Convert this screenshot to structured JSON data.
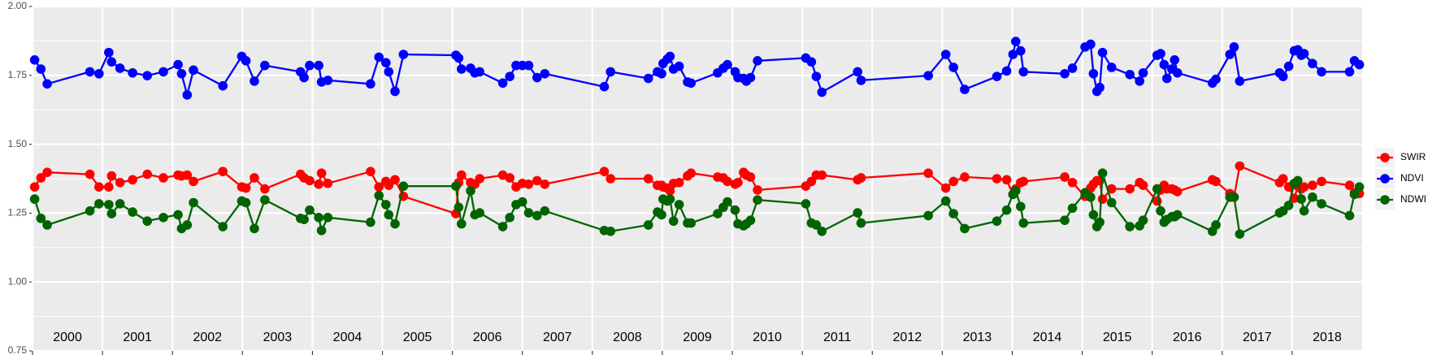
{
  "chart_data": {
    "type": "line",
    "xlim": [
      2000,
      2019
    ],
    "xticks": [
      2000,
      2001,
      2002,
      2003,
      2004,
      2005,
      2006,
      2007,
      2008,
      2009,
      2010,
      2011,
      2012,
      2013,
      2014,
      2015,
      2016,
      2017,
      2018
    ],
    "year_labels": [
      "2000",
      "2001",
      "2002",
      "2003",
      "2004",
      "2005",
      "2006",
      "2007",
      "2008",
      "2009",
      "2010",
      "2011",
      "2012",
      "2013",
      "2014",
      "2015",
      "2016",
      "2017",
      "2018"
    ],
    "ylim": [
      0.75,
      2.0
    ],
    "yticks": [
      0.75,
      {
        "value": 1.0,
        "label": "1.00"
      },
      1.25,
      {
        "value": 1.5,
        "label": "1.50"
      },
      1.75,
      {
        "value": 2.0,
        "label": "2.00"
      }
    ],
    "grid": true,
    "legend": "right",
    "x": [
      2000.03,
      2000.12,
      2000.21,
      2000.82,
      2000.95,
      2001.09,
      2001.13,
      2001.25,
      2001.43,
      2001.64,
      2001.87,
      2002.08,
      2002.13,
      2002.21,
      2002.3,
      2002.72,
      2002.99,
      2003.05,
      2003.17,
      2003.32,
      2003.83,
      2003.88,
      2003.96,
      2004.09,
      2004.13,
      2004.22,
      2004.83,
      2004.95,
      2005.05,
      2005.09,
      2005.18,
      2005.3,
      2006.05,
      2006.09,
      2006.13,
      2006.26,
      2006.32,
      2006.39,
      2006.72,
      2006.82,
      2006.91,
      2007.0,
      2007.09,
      2007.21,
      2007.32,
      2008.17,
      2008.26,
      2008.8,
      2008.93,
      2008.99,
      2009.01,
      2009.07,
      2009.11,
      2009.16,
      2009.24,
      2009.36,
      2009.41,
      2009.79,
      2009.87,
      2009.93,
      2010.04,
      2010.08,
      2010.16,
      2010.2,
      2010.26,
      2010.36,
      2011.05,
      2011.13,
      2011.2,
      2011.28,
      2011.79,
      2011.84,
      2012.8,
      2013.05,
      2013.16,
      2013.32,
      2013.78,
      2013.92,
      2014.01,
      2014.05,
      2014.12,
      2014.16,
      2014.75,
      2014.86,
      2015.04,
      2015.12,
      2015.16,
      2015.21,
      2015.25,
      2015.29,
      2015.42,
      2015.68,
      2015.82,
      2015.87,
      2016.07,
      2016.12,
      2016.17,
      2016.21,
      2016.28,
      2016.32,
      2016.36,
      2016.86,
      2016.91,
      2017.11,
      2017.17,
      2017.25,
      2017.82,
      2017.87,
      2017.95,
      2018.03,
      2018.08,
      2018.13,
      2018.17,
      2018.29,
      2018.42,
      2018.82,
      2018.89,
      2018.96
    ],
    "series": [
      {
        "name": "SWIR",
        "color": "#ff0000",
        "values": [
          1.345,
          1.378,
          1.398,
          1.391,
          1.345,
          1.345,
          1.385,
          1.361,
          1.371,
          1.391,
          1.378,
          1.388,
          1.385,
          1.388,
          1.365,
          1.401,
          1.345,
          1.341,
          1.378,
          1.338,
          1.391,
          1.378,
          1.368,
          1.355,
          1.395,
          1.358,
          1.401,
          1.345,
          1.365,
          1.351,
          1.371,
          1.311,
          1.248,
          1.361,
          1.388,
          1.361,
          1.355,
          1.375,
          1.388,
          1.378,
          1.345,
          1.358,
          1.355,
          1.368,
          1.355,
          1.401,
          1.375,
          1.375,
          1.351,
          1.351,
          1.345,
          1.341,
          1.331,
          1.358,
          1.361,
          1.385,
          1.395,
          1.381,
          1.378,
          1.365,
          1.355,
          1.361,
          1.398,
          1.388,
          1.381,
          1.334,
          1.348,
          1.365,
          1.388,
          1.388,
          1.371,
          1.378,
          1.395,
          1.341,
          1.365,
          1.381,
          1.375,
          1.371,
          1.318,
          1.338,
          1.361,
          1.365,
          1.381,
          1.361,
          1.311,
          1.341,
          1.355,
          1.368,
          1.368,
          1.301,
          1.338,
          1.338,
          1.361,
          1.351,
          1.294,
          1.334,
          1.351,
          1.338,
          1.338,
          1.334,
          1.328,
          1.371,
          1.365,
          1.321,
          1.308,
          1.421,
          1.361,
          1.375,
          1.345,
          1.304,
          1.348,
          1.338,
          1.345,
          1.351,
          1.365,
          1.351,
          1.324,
          1.321
        ]
      },
      {
        "name": "NDVI",
        "color": "#0000ff",
        "values": [
          1.806,
          1.773,
          1.719,
          1.763,
          1.756,
          1.833,
          1.799,
          1.776,
          1.759,
          1.749,
          1.763,
          1.789,
          1.756,
          1.679,
          1.769,
          1.712,
          1.819,
          1.803,
          1.729,
          1.786,
          1.763,
          1.742,
          1.786,
          1.786,
          1.726,
          1.732,
          1.719,
          1.816,
          1.796,
          1.763,
          1.692,
          1.826,
          1.823,
          1.813,
          1.773,
          1.776,
          1.759,
          1.763,
          1.722,
          1.746,
          1.786,
          1.786,
          1.786,
          1.742,
          1.756,
          1.709,
          1.763,
          1.739,
          1.763,
          1.756,
          1.793,
          1.809,
          1.819,
          1.773,
          1.783,
          1.726,
          1.722,
          1.759,
          1.776,
          1.789,
          1.763,
          1.742,
          1.739,
          1.729,
          1.742,
          1.803,
          1.813,
          1.799,
          1.746,
          1.689,
          1.763,
          1.732,
          1.749,
          1.826,
          1.779,
          1.699,
          1.746,
          1.766,
          1.826,
          1.873,
          1.839,
          1.763,
          1.756,
          1.776,
          1.853,
          1.863,
          1.756,
          1.692,
          1.706,
          1.833,
          1.779,
          1.753,
          1.729,
          1.759,
          1.823,
          1.829,
          1.789,
          1.739,
          1.773,
          1.806,
          1.759,
          1.722,
          1.736,
          1.826,
          1.853,
          1.729,
          1.759,
          1.746,
          1.783,
          1.839,
          1.843,
          1.823,
          1.829,
          1.793,
          1.763,
          1.763,
          1.803,
          1.789
        ]
      },
      {
        "name": "NDWI",
        "color": "#006400",
        "values": [
          1.301,
          1.231,
          1.207,
          1.258,
          1.284,
          1.281,
          1.248,
          1.284,
          1.254,
          1.221,
          1.234,
          1.244,
          1.194,
          1.207,
          1.288,
          1.201,
          1.294,
          1.288,
          1.194,
          1.298,
          1.231,
          1.227,
          1.261,
          1.234,
          1.187,
          1.234,
          1.217,
          1.314,
          1.281,
          1.244,
          1.211,
          1.348,
          1.348,
          1.271,
          1.211,
          1.331,
          1.244,
          1.251,
          1.201,
          1.234,
          1.281,
          1.291,
          1.251,
          1.241,
          1.258,
          1.187,
          1.184,
          1.207,
          1.254,
          1.244,
          1.301,
          1.294,
          1.301,
          1.221,
          1.281,
          1.214,
          1.214,
          1.248,
          1.271,
          1.291,
          1.261,
          1.211,
          1.204,
          1.211,
          1.224,
          1.298,
          1.284,
          1.214,
          1.207,
          1.184,
          1.251,
          1.214,
          1.241,
          1.294,
          1.248,
          1.194,
          1.221,
          1.261,
          1.318,
          1.331,
          1.274,
          1.214,
          1.224,
          1.268,
          1.324,
          1.308,
          1.244,
          1.201,
          1.217,
          1.395,
          1.288,
          1.201,
          1.204,
          1.224,
          1.338,
          1.258,
          1.217,
          1.227,
          1.237,
          1.237,
          1.244,
          1.184,
          1.207,
          1.308,
          1.308,
          1.174,
          1.251,
          1.258,
          1.278,
          1.358,
          1.368,
          1.301,
          1.258,
          1.308,
          1.284,
          1.241,
          1.318,
          1.345
        ]
      }
    ]
  }
}
